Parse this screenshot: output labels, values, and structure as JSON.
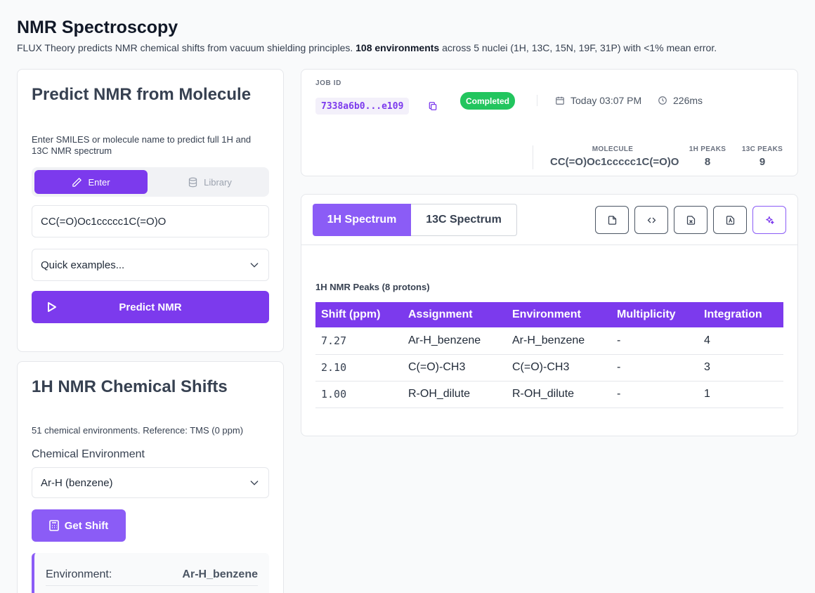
{
  "header": {
    "title": "NMR Spectroscopy",
    "desc_pre": "FLUX Theory predicts NMR chemical shifts from vacuum shielding principles. ",
    "desc_bold": "108 environments",
    "desc_post": " across 5 nuclei (1H, 13C, 15N, 19F, 31P) with <1% mean error."
  },
  "predict_card": {
    "title": "Predict NMR from Molecule",
    "description": "Enter SMILES or molecule name to predict full 1H and 13C NMR spectrum",
    "mode_enter": "Enter",
    "mode_library": "Library",
    "smiles_value": "CC(=O)Oc1ccccc1C(=O)O",
    "quick_examples": "Quick examples...",
    "predict_button": "Predict NMR"
  },
  "shifts_card": {
    "title": "1H NMR Chemical Shifts",
    "description": "51 chemical environments. Reference: TMS (0 ppm)",
    "env_label": "Chemical Environment",
    "env_selected": "Ar-H (benzene)",
    "get_shift_button": "Get Shift",
    "result_key": "Environment:",
    "result_value": "Ar-H_benzene"
  },
  "job": {
    "label": "JOB ID",
    "id": "7338a6b0...e109",
    "status": "Completed",
    "date": "Today 03:07 PM",
    "duration": "226ms",
    "molecule_label": "MOLECULE",
    "molecule_value": "CC(=O)Oc1ccccc1C(=O)O",
    "h1_label": "1H PEAKS",
    "h1_value": "8",
    "c13_label": "13C PEAKS",
    "c13_value": "9"
  },
  "spectrum": {
    "tab_1h": "1H Spectrum",
    "tab_13c": "13C Spectrum",
    "table_caption": "1H NMR Peaks (8 protons)",
    "columns": [
      "Shift (ppm)",
      "Assignment",
      "Environment",
      "Multiplicity",
      "Integration"
    ],
    "rows": [
      [
        "7.27",
        "Ar-H_benzene",
        "Ar-H_benzene",
        "-",
        "4"
      ],
      [
        "2.10",
        "C(=O)-CH3",
        "C(=O)-CH3",
        "-",
        "3"
      ],
      [
        "1.00",
        "R-OH_dilute",
        "R-OH_dilute",
        "-",
        "1"
      ]
    ]
  },
  "colors": {
    "accent": "#7c3aed",
    "accent_light": "#8b5cf6",
    "success": "#22c55e"
  },
  "icons": {
    "enter": "pencil-icon",
    "library": "database-icon",
    "predict": "play-icon",
    "get_shift": "calculator-icon",
    "copy": "copy-icon",
    "date": "calendar-icon",
    "duration": "clock-icon",
    "export": [
      "file-icon",
      "code-icon",
      "excel-icon",
      "pdf-icon",
      "sparkles-icon"
    ]
  }
}
